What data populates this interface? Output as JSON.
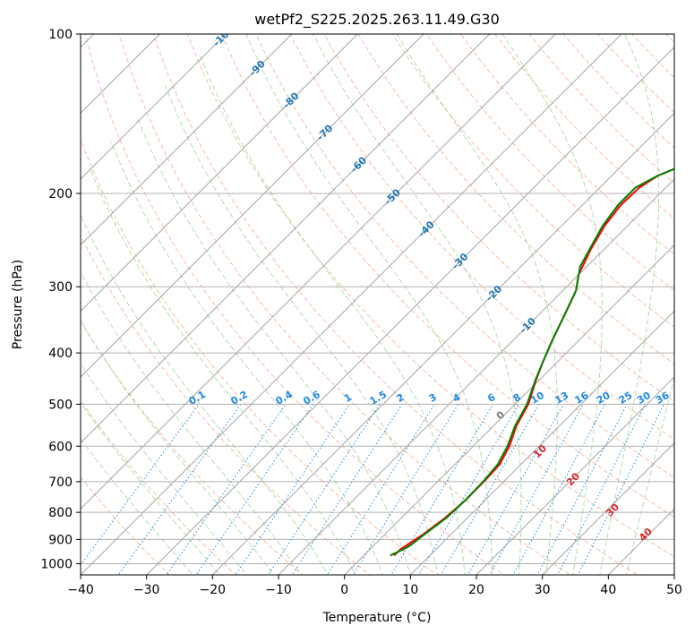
{
  "chart_data": {
    "type": "line",
    "title": "wetPf2_S225.2025.263.11.49.G30",
    "xlabel": "Temperature (°C)",
    "ylabel": "Pressure (hPa)",
    "xlim": [
      -40,
      50
    ],
    "ylim": [
      1050,
      100
    ],
    "x_ticks": [
      -40,
      -30,
      -20,
      -10,
      0,
      10,
      20,
      30,
      40,
      50
    ],
    "y_ticks": [
      100,
      200,
      300,
      400,
      500,
      600,
      700,
      800,
      900,
      1000
    ],
    "colors": {
      "temperature": "#ff0000",
      "dewpoint": "#008000",
      "isotherm": "#999999",
      "dry_adiabat": "#f4a582",
      "moist_adiabat": "#9fd39f",
      "mixing_ratio": "#1e88e5",
      "isotherm_label": "#1f77b4",
      "theta_label": "#d62728"
    },
    "series": [
      {
        "name": "Temperature",
        "points": [
          [
            4.6,
            965
          ],
          [
            4.6,
            940
          ],
          [
            5.0,
            920
          ],
          [
            5.8,
            880
          ],
          [
            6.6,
            820
          ],
          [
            7.0,
            760
          ],
          [
            7.0,
            700
          ],
          [
            6.8,
            650
          ],
          [
            5.5,
            600
          ],
          [
            3.5,
            550
          ],
          [
            2.0,
            500
          ],
          [
            -0.5,
            450
          ],
          [
            -2.0,
            420
          ],
          [
            -4.0,
            380
          ],
          [
            -6.0,
            340
          ],
          [
            -8.0,
            305
          ],
          [
            -10.0,
            285
          ],
          [
            -12.0,
            255
          ],
          [
            -13.5,
            230
          ],
          [
            -14.2,
            210
          ],
          [
            -14.0,
            195
          ],
          [
            -13.0,
            185
          ],
          [
            -11.0,
            178
          ],
          [
            -8.0,
            172
          ],
          [
            -4.0,
            162
          ],
          [
            -2.0,
            155
          ],
          [
            1.0,
            145
          ],
          [
            3.0,
            135
          ],
          [
            5.0,
            127
          ],
          [
            7.0,
            120
          ],
          [
            8.5,
            113
          ],
          [
            10.0,
            107
          ],
          [
            11.5,
            100
          ]
        ]
      },
      {
        "name": "Dewpoint",
        "points": [
          [
            4.0,
            965
          ],
          [
            5.0,
            940
          ],
          [
            5.5,
            925
          ],
          [
            6.0,
            880
          ],
          [
            6.8,
            820
          ],
          [
            7.0,
            760
          ],
          [
            6.9,
            700
          ],
          [
            6.5,
            650
          ],
          [
            5.2,
            600
          ],
          [
            3.3,
            550
          ],
          [
            1.8,
            500
          ],
          [
            -0.6,
            450
          ],
          [
            -2.0,
            420
          ],
          [
            -4.0,
            380
          ],
          [
            -6.0,
            340
          ],
          [
            -8.0,
            305
          ],
          [
            -11.0,
            275
          ],
          [
            -12.5,
            250
          ],
          [
            -13.8,
            230
          ],
          [
            -14.6,
            210
          ],
          [
            -14.6,
            195
          ],
          [
            -13.0,
            185
          ],
          [
            -11.0,
            178
          ],
          [
            -10.8,
            170
          ],
          [
            -11.0,
            162
          ],
          [
            -10.5,
            155
          ],
          [
            -9.0,
            148
          ],
          [
            -7.0,
            140
          ],
          [
            -5.0,
            130
          ],
          [
            -4.0,
            122
          ],
          [
            -3.0,
            114
          ],
          [
            -2.0,
            107
          ],
          [
            -1.5,
            100
          ]
        ]
      }
    ],
    "isotherm_labels": [
      "-100",
      "-90",
      "-80",
      "-70",
      "-60",
      "-50",
      "-40",
      "-30",
      "-20",
      "-10"
    ],
    "mixing_ratio_labels": [
      "0.1",
      "0.2",
      "0.4",
      "0.6",
      "1",
      "1.5",
      "2",
      "3",
      "4",
      "6",
      "8",
      "10",
      "13",
      "16",
      "20",
      "25",
      "30",
      "36"
    ],
    "theta_labels": [
      "0",
      "10",
      "20",
      "30",
      "40"
    ]
  }
}
